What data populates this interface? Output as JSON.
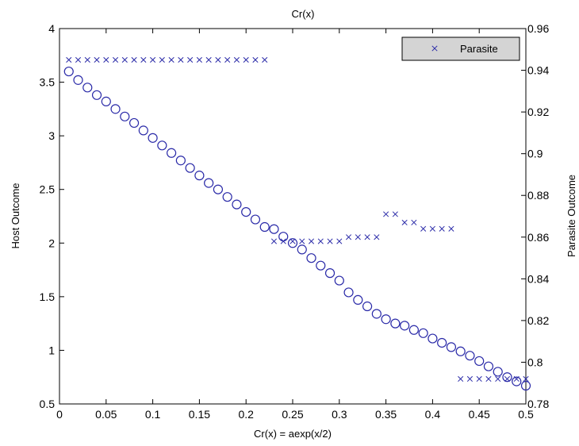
{
  "chart_data": {
    "type": "scatter",
    "title": "Cr(x)",
    "xlabel": "Cr(x) = aexp(x/2)",
    "ylabel_left": "Host Outcome",
    "ylabel_right": "Parasite Outcome",
    "xlim": [
      0,
      0.5
    ],
    "ylim_left": [
      0.5,
      4
    ],
    "ylim_right": [
      0.78,
      0.96
    ],
    "x_ticks": [
      "0",
      "0.05",
      "0.1",
      "0.15",
      "0.2",
      "0.25",
      "0.3",
      "0.35",
      "0.4",
      "0.45",
      "0.5"
    ],
    "y_left_ticks": [
      "0.5",
      "1",
      "1.5",
      "2",
      "2.5",
      "3",
      "3.5",
      "4"
    ],
    "y_right_ticks": [
      "0.78",
      "0.8",
      "0.82",
      "0.84",
      "0.86",
      "0.88",
      "0.9",
      "0.92",
      "0.94",
      "0.96"
    ],
    "grid": false,
    "legend": {
      "placement": "top-right",
      "entries": [
        "Parasite"
      ]
    },
    "colors": {
      "marker": "#2a2aa8"
    },
    "series": [
      {
        "marker": "circle",
        "axis": "left",
        "x": [
          0.01,
          0.02,
          0.03,
          0.04,
          0.05,
          0.06,
          0.07,
          0.08,
          0.09,
          0.1,
          0.11,
          0.12,
          0.13,
          0.14,
          0.15,
          0.16,
          0.17,
          0.18,
          0.19,
          0.2,
          0.21,
          0.22,
          0.23,
          0.24,
          0.25,
          0.26,
          0.27,
          0.28,
          0.29,
          0.3,
          0.31,
          0.32,
          0.33,
          0.34,
          0.35,
          0.36,
          0.37,
          0.38,
          0.39,
          0.4,
          0.41,
          0.42,
          0.43,
          0.44,
          0.45,
          0.46,
          0.47,
          0.48,
          0.49,
          0.5
        ],
        "values": [
          3.6,
          3.52,
          3.45,
          3.38,
          3.32,
          3.25,
          3.18,
          3.12,
          3.05,
          2.98,
          2.91,
          2.84,
          2.77,
          2.7,
          2.63,
          2.56,
          2.5,
          2.43,
          2.36,
          2.29,
          2.22,
          2.15,
          2.13,
          2.06,
          2.0,
          1.94,
          1.86,
          1.79,
          1.72,
          1.65,
          1.54,
          1.47,
          1.41,
          1.34,
          1.29,
          1.25,
          1.23,
          1.19,
          1.16,
          1.11,
          1.07,
          1.03,
          0.99,
          0.95,
          0.9,
          0.85,
          0.8,
          0.75,
          0.71,
          0.67
        ]
      },
      {
        "name": "Parasite",
        "marker": "x",
        "axis": "right",
        "x": [
          0.01,
          0.02,
          0.03,
          0.04,
          0.05,
          0.06,
          0.07,
          0.08,
          0.09,
          0.1,
          0.11,
          0.12,
          0.13,
          0.14,
          0.15,
          0.16,
          0.17,
          0.18,
          0.19,
          0.2,
          0.21,
          0.22,
          0.23,
          0.24,
          0.25,
          0.26,
          0.27,
          0.28,
          0.29,
          0.3,
          0.31,
          0.32,
          0.33,
          0.34,
          0.35,
          0.36,
          0.37,
          0.38,
          0.39,
          0.4,
          0.41,
          0.42,
          0.43,
          0.44,
          0.45,
          0.46,
          0.47,
          0.48,
          0.49,
          0.5
        ],
        "values": [
          0.945,
          0.945,
          0.945,
          0.945,
          0.945,
          0.945,
          0.945,
          0.945,
          0.945,
          0.945,
          0.945,
          0.945,
          0.945,
          0.945,
          0.945,
          0.945,
          0.945,
          0.945,
          0.945,
          0.945,
          0.945,
          0.945,
          0.858,
          0.858,
          0.858,
          0.858,
          0.858,
          0.858,
          0.858,
          0.858,
          0.86,
          0.86,
          0.86,
          0.86,
          0.871,
          0.871,
          0.867,
          0.867,
          0.864,
          0.864,
          0.864,
          0.864,
          0.792,
          0.792,
          0.792,
          0.792,
          0.792,
          0.792,
          0.792,
          0.792
        ]
      }
    ]
  }
}
